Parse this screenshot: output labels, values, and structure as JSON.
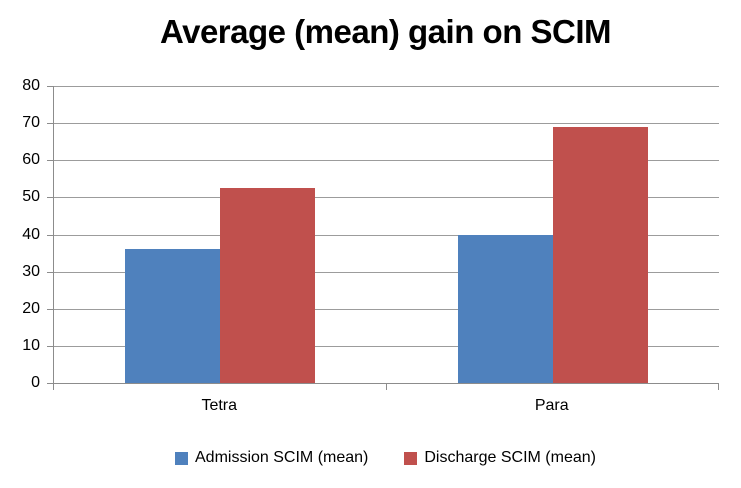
{
  "chart_data": {
    "type": "bar",
    "title": "Average (mean) gain on SCIM",
    "categories": [
      "Tetra",
      "Para"
    ],
    "series": [
      {
        "name": "Admission SCIM (mean)",
        "color": "#4F81BD",
        "values": [
          36.2,
          39.8
        ]
      },
      {
        "name": "Discharge SCIM (mean)",
        "color": "#C0504D",
        "values": [
          52.4,
          69.0
        ]
      }
    ],
    "xlabel": "",
    "ylabel": "",
    "ylim": [
      0,
      80
    ],
    "yticks": [
      0,
      10,
      20,
      30,
      40,
      50,
      60,
      70,
      80
    ],
    "grid": true,
    "legend_position": "bottom",
    "gridline_color": "#9C9C9C",
    "axis_color": "#8C8C8C",
    "text_color": "#000000",
    "background_color": "#FFFFFF"
  }
}
